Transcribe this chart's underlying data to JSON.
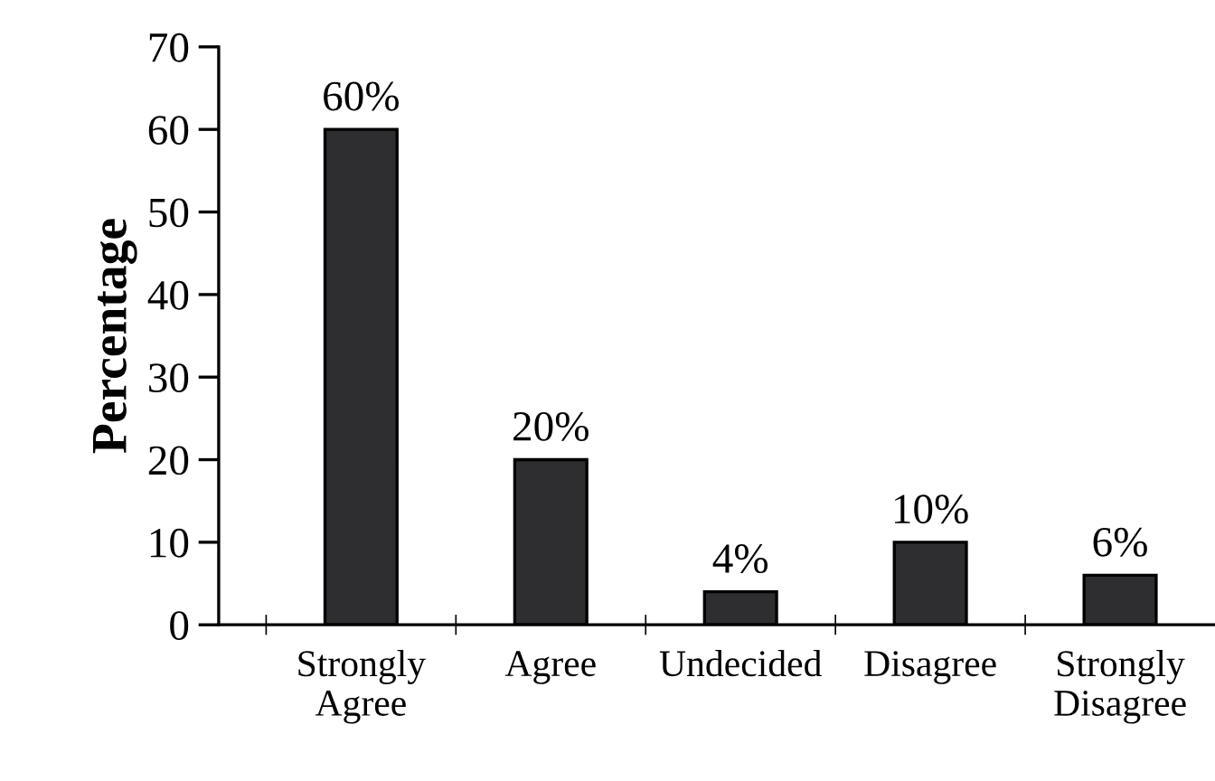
{
  "chart_data": {
    "type": "bar",
    "ylabel": "Percentage",
    "categories": [
      "Strongly\nAgree",
      "Agree",
      "Undecided",
      "Disagree",
      "Strongly\nDisagree"
    ],
    "values": [
      60,
      20,
      4,
      10,
      6
    ],
    "value_labels": [
      "60%",
      "20%",
      "4%",
      "10%",
      "6%"
    ],
    "color": "#2e2e30",
    "ylim": [
      0,
      70
    ],
    "yticks": [
      0,
      10,
      20,
      30,
      40,
      50,
      60,
      70
    ],
    "grid": false,
    "legend": false
  }
}
